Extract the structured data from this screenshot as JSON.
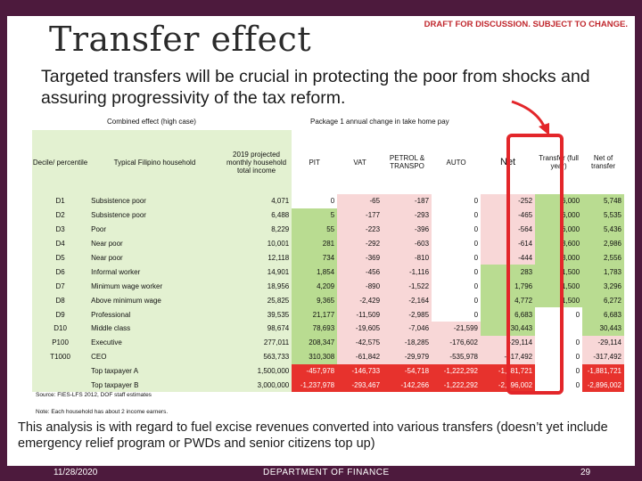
{
  "slide": {
    "title": "Transfer effect",
    "draft_notice": "DRAFT FOR DISCUSSION. SUBJECT TO CHANGE.",
    "subtitle": "Targeted transfers will be crucial in protecting the poor from shocks and assuring progressivity of the tax reform.",
    "analysis": "This analysis is with regard to fuel excise revenues converted into various transfers (doesn’t yet include emergency relief program or PWDs and senior citizens top up)",
    "source": "Source: FIES-LFS 2012, DOF staff estimates",
    "note": "Note: Each household has about 2 income earners.",
    "footer": {
      "date": "11/28/2020",
      "department": "DEPARTMENT OF FINANCE",
      "page": "29"
    }
  },
  "table": {
    "group_headers": {
      "left": "Combined effect (high case)",
      "right": "Package 1 annual change in take home pay"
    },
    "headers": {
      "decile": "Decile/ percentile",
      "household": "Typical Filipino household",
      "income": "2019 projected monthly household total income",
      "pit": "PIT",
      "vat": "VAT",
      "petrol": "PETROL & TRANSPO",
      "auto": "AUTO",
      "net": "Net",
      "transfer": "Transfer (full year)",
      "net_transfer": "Net of transfer"
    },
    "rows": [
      {
        "decile": "D1",
        "household": "Subsistence poor",
        "income": "4,071",
        "pit": "0",
        "vat": "-65",
        "petrol": "-187",
        "auto": "0",
        "net": "-252",
        "transfer": "6,000",
        "net_transfer": "5,748"
      },
      {
        "decile": "D2",
        "household": "Subsistence poor",
        "income": "6,488",
        "pit": "5",
        "vat": "-177",
        "petrol": "-293",
        "auto": "0",
        "net": "-465",
        "transfer": "6,000",
        "net_transfer": "5,535"
      },
      {
        "decile": "D3",
        "household": "Poor",
        "income": "8,229",
        "pit": "55",
        "vat": "-223",
        "petrol": "-396",
        "auto": "0",
        "net": "-564",
        "transfer": "6,000",
        "net_transfer": "5,436"
      },
      {
        "decile": "D4",
        "household": "Near poor",
        "income": "10,001",
        "pit": "281",
        "vat": "-292",
        "petrol": "-603",
        "auto": "0",
        "net": "-614",
        "transfer": "3,600",
        "net_transfer": "2,986"
      },
      {
        "decile": "D5",
        "household": "Near poor",
        "income": "12,118",
        "pit": "734",
        "vat": "-369",
        "petrol": "-810",
        "auto": "0",
        "net": "-444",
        "transfer": "3,000",
        "net_transfer": "2,556"
      },
      {
        "decile": "D6",
        "household": "Informal worker",
        "income": "14,901",
        "pit": "1,854",
        "vat": "-456",
        "petrol": "-1,116",
        "auto": "0",
        "net": "283",
        "transfer": "1,500",
        "net_transfer": "1,783"
      },
      {
        "decile": "D7",
        "household": "Minimum wage worker",
        "income": "18,956",
        "pit": "4,209",
        "vat": "-890",
        "petrol": "-1,522",
        "auto": "0",
        "net": "1,796",
        "transfer": "1,500",
        "net_transfer": "3,296"
      },
      {
        "decile": "D8",
        "household": "Above minimum wage",
        "income": "25,825",
        "pit": "9,365",
        "vat": "-2,429",
        "petrol": "-2,164",
        "auto": "0",
        "net": "4,772",
        "transfer": "1,500",
        "net_transfer": "6,272"
      },
      {
        "decile": "D9",
        "household": "Professional",
        "income": "39,535",
        "pit": "21,177",
        "vat": "-11,509",
        "petrol": "-2,985",
        "auto": "0",
        "net": "6,683",
        "transfer": "0",
        "net_transfer": "6,683"
      },
      {
        "decile": "D10",
        "household": "Middle class",
        "income": "98,674",
        "pit": "78,693",
        "vat": "-19,605",
        "petrol": "-7,046",
        "auto": "-21,599",
        "net": "30,443",
        "transfer": "",
        "net_transfer": "30,443"
      },
      {
        "decile": "P100",
        "household": "Executive",
        "income": "277,011",
        "pit": "208,347",
        "vat": "-42,575",
        "petrol": "-18,285",
        "auto": "-176,602",
        "net": "-29,114",
        "transfer": "0",
        "net_transfer": "-29,114"
      },
      {
        "decile": "T1000",
        "household": "CEO",
        "income": "563,733",
        "pit": "310,308",
        "vat": "-61,842",
        "petrol": "-29,979",
        "auto": "-535,978",
        "net": "-317,492",
        "transfer": "0",
        "net_transfer": "-317,492"
      },
      {
        "decile": "",
        "household": "Top taxpayer A",
        "income": "1,500,000",
        "pit": "-457,978",
        "vat": "-146,733",
        "petrol": "-54,718",
        "auto": "-1,222,292",
        "net": "-1,881,721",
        "transfer": "0",
        "net_transfer": "-1,881,721"
      },
      {
        "decile": "",
        "household": "Top taxpayer B",
        "income": "3,000,000",
        "pit": "-1,237,978",
        "vat": "-293,467",
        "petrol": "-142,266",
        "auto": "-1,222,292",
        "net": "-2,896,002",
        "transfer": "0",
        "net_transfer": "-2,896,002"
      }
    ]
  },
  "colors": {
    "frame": "#4d1a3d",
    "draft": "#c0272d",
    "highlight": "#e3262a",
    "light_green": "#e3f1d1",
    "dark_green": "#b9dc91",
    "light_pink": "#f8d7d7",
    "red": "#e7322d"
  }
}
